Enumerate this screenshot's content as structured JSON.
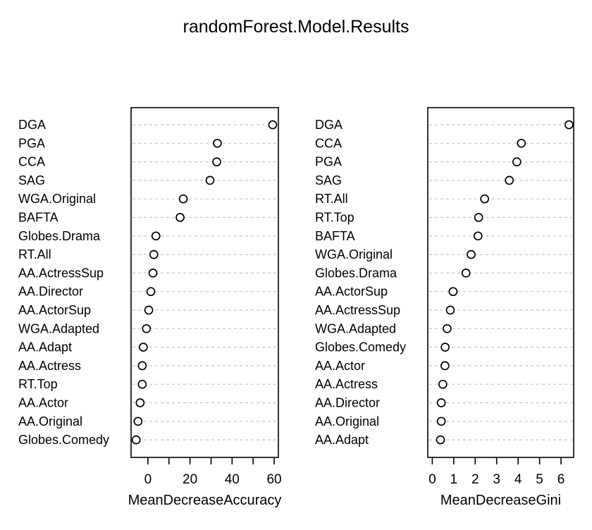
{
  "title": "randomForest.Model.Results",
  "colors": {
    "background": "#ffffff",
    "box_stroke": "#000000",
    "gridline": "#c4c4c4",
    "point_stroke": "#000000",
    "point_fill": "#ffffff",
    "text": "#000000"
  },
  "chart_data": [
    {
      "type": "scatter",
      "variant": "dotchart",
      "title": "",
      "xlabel": "MeanDecreaseAccuracy",
      "ylabel": "",
      "legend": "none",
      "grid": "horizontal-dashed",
      "xlim": [
        -8,
        62
      ],
      "xticks": [
        0,
        10,
        20,
        30,
        40,
        50,
        60
      ],
      "xtick_labels": [
        "0",
        "",
        "20",
        "",
        "40",
        "",
        "60"
      ],
      "categories": [
        "DGA",
        "PGA",
        "CCA",
        "SAG",
        "WGA.Original",
        "BAFTA",
        "Globes.Drama",
        "RT.All",
        "AA.ActressSup",
        "AA.Director",
        "AA.ActorSup",
        "WGA.Adapted",
        "AA.Adapt",
        "AA.Actress",
        "RT.Top",
        "AA.Actor",
        "AA.Original",
        "Globes.Comedy"
      ],
      "values": [
        59.3,
        33.0,
        32.7,
        29.5,
        16.8,
        15.3,
        3.8,
        2.8,
        2.4,
        1.4,
        0.4,
        -0.7,
        -2.2,
        -2.7,
        -2.7,
        -3.7,
        -4.7,
        -5.6
      ]
    },
    {
      "type": "scatter",
      "variant": "dotchart",
      "title": "",
      "xlabel": "MeanDecreaseGini",
      "ylabel": "",
      "legend": "none",
      "grid": "horizontal-dashed",
      "xlim": [
        -0.21,
        6.59
      ],
      "xticks": [
        0,
        1,
        2,
        3,
        4,
        5,
        6
      ],
      "xtick_labels": [
        "0",
        "1",
        "2",
        "3",
        "4",
        "5",
        "6"
      ],
      "categories": [
        "DGA",
        "CCA",
        "PGA",
        "SAG",
        "RT.All",
        "RT.Top",
        "BAFTA",
        "WGA.Original",
        "Globes.Drama",
        "AA.ActorSup",
        "AA.ActressSup",
        "WGA.Adapted",
        "Globes.Comedy",
        "AA.Actor",
        "AA.Actress",
        "AA.Director",
        "AA.Original",
        "AA.Adapt"
      ],
      "values": [
        6.37,
        4.15,
        3.94,
        3.59,
        2.44,
        2.16,
        2.13,
        1.81,
        1.57,
        0.97,
        0.84,
        0.69,
        0.6,
        0.59,
        0.49,
        0.42,
        0.42,
        0.38
      ]
    }
  ]
}
